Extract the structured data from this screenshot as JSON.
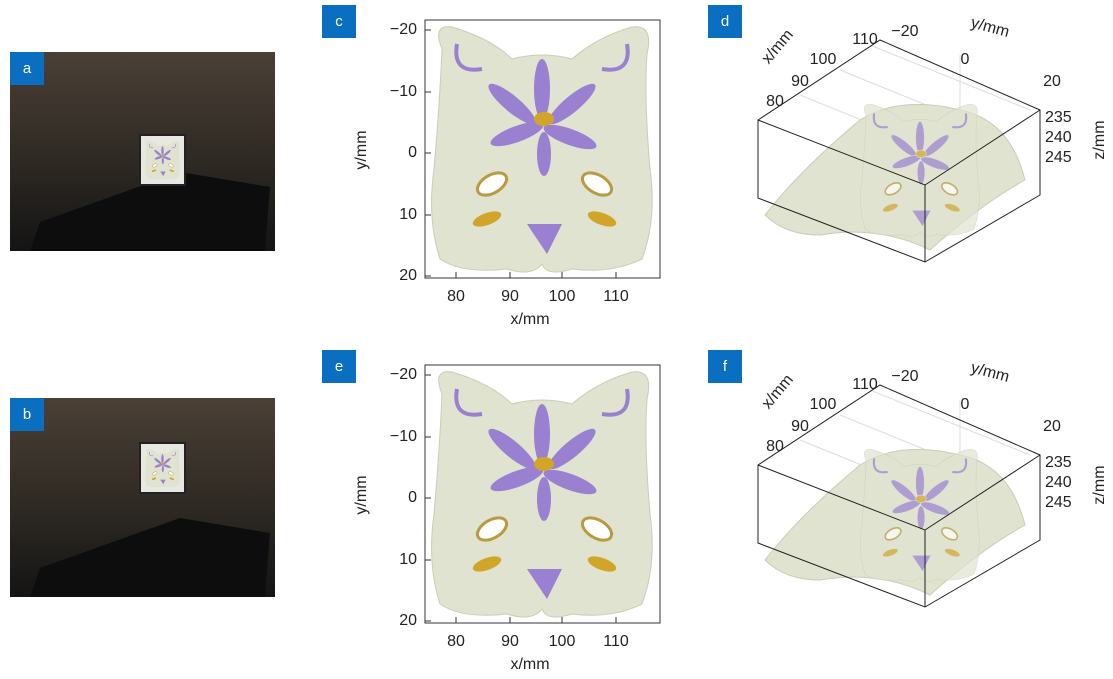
{
  "panels": [
    {
      "label": "a"
    },
    {
      "label": "b"
    },
    {
      "label": "c",
      "x_label": "x/mm",
      "y_label": "y/mm",
      "x_ticks": [
        "80",
        "90",
        "100",
        "110"
      ],
      "y_ticks": [
        "−20",
        "−10",
        "0",
        "10",
        "20"
      ]
    },
    {
      "label": "d",
      "x_label": "x/mm",
      "y_label": "y/mm",
      "z_label": "z/mm",
      "x_ticks": [
        "80",
        "90",
        "100",
        "110"
      ],
      "y_ticks": [
        "−20",
        "0",
        "20"
      ],
      "z_ticks": [
        "235",
        "240",
        "245"
      ]
    },
    {
      "label": "e",
      "x_label": "x/mm",
      "y_label": "y/mm",
      "x_ticks": [
        "80",
        "90",
        "100",
        "110"
      ],
      "y_ticks": [
        "−20",
        "−10",
        "0",
        "10",
        "20"
      ]
    },
    {
      "label": "f",
      "x_label": "x/mm",
      "y_label": "y/mm",
      "z_label": "z/mm",
      "x_ticks": [
        "80",
        "90",
        "100",
        "110"
      ],
      "y_ticks": [
        "−20",
        "0",
        "20"
      ],
      "z_ticks": [
        "235",
        "240",
        "245"
      ]
    }
  ]
}
